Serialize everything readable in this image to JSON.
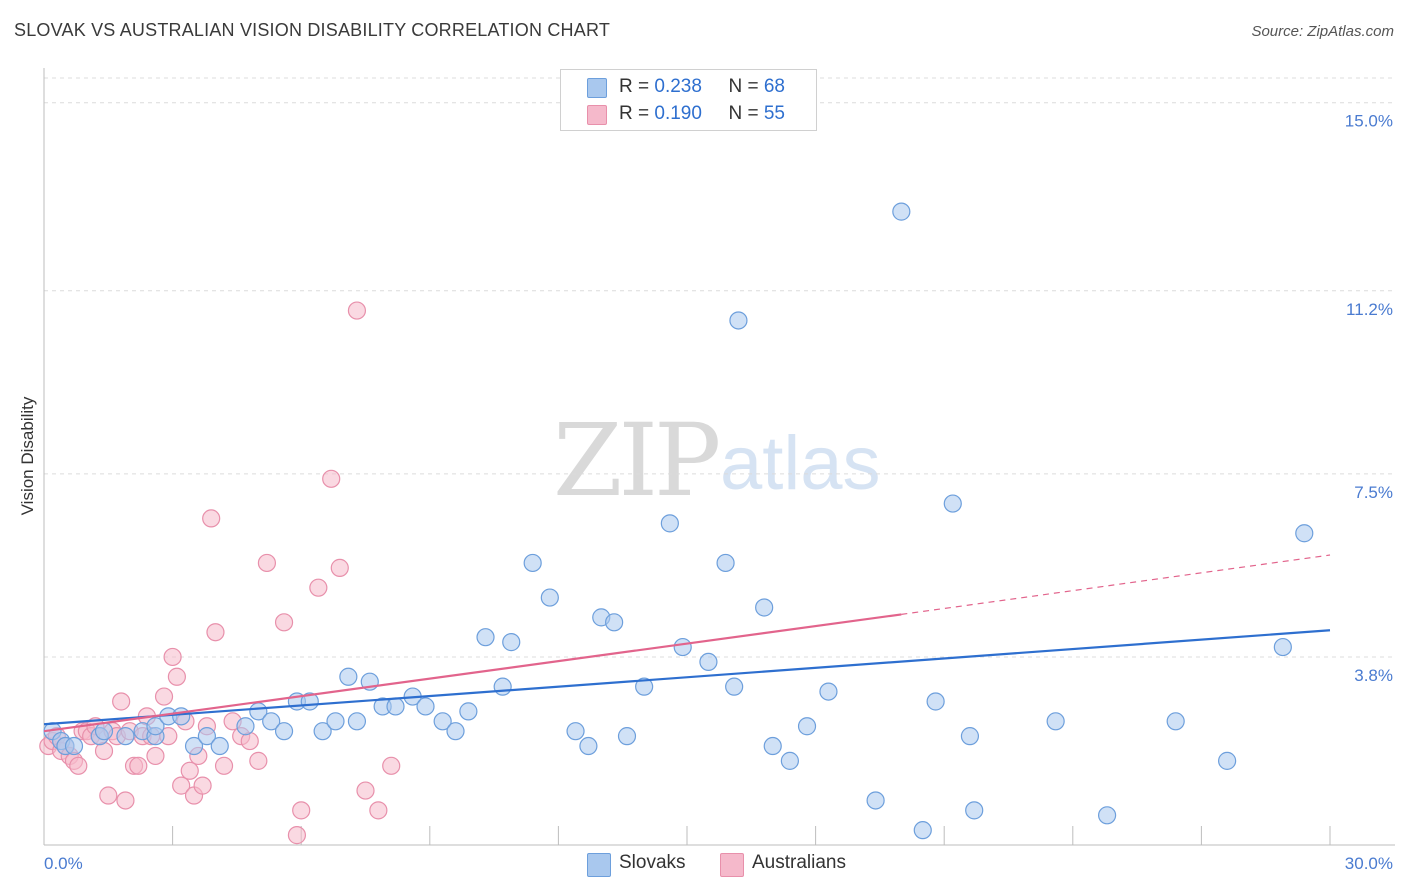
{
  "header": {
    "title": "SLOVAK VS AUSTRALIAN VISION DISABILITY CORRELATION CHART",
    "source": "Source: ZipAtlas.com"
  },
  "watermark": {
    "zip": "ZIP",
    "atlas": "atlas"
  },
  "legend": {
    "rows": [
      {
        "r_label": "R = ",
        "r_value": "0.238",
        "n_label": "N = ",
        "n_value": "68",
        "color": "#a9c8ee"
      },
      {
        "r_label": "R = ",
        "r_value": "0.190",
        "n_label": "N = ",
        "n_value": "55",
        "color": "#f5b9cb"
      }
    ]
  },
  "bottom_legend": [
    {
      "label": "Slovaks",
      "color": "#a9c8ee"
    },
    {
      "label": "Australians",
      "color": "#f5b9cb"
    }
  ],
  "chart_data": {
    "type": "scatter",
    "title": "SLOVAK VS AUSTRALIAN VISION DISABILITY CORRELATION CHART",
    "xlabel": "",
    "ylabel": "Vision Disability",
    "xlim": [
      0,
      30
    ],
    "ylim": [
      0,
      15.5
    ],
    "x_tick_labels": [
      "0.0%",
      "30.0%"
    ],
    "y_ticks": [
      3.8,
      7.5,
      11.2,
      15.0
    ],
    "y_tick_labels": [
      "3.8%",
      "7.5%",
      "11.2%",
      "15.0%"
    ],
    "grid": true,
    "legend_position": "top-center",
    "colors": {
      "slovaks_fill": "#a9c8ee",
      "slovaks_stroke": "#6d9fdc",
      "slovaks_line": "#2e6fcf",
      "australians_fill": "#f5b9cb",
      "australians_stroke": "#e890ab",
      "australians_line": "#e2648c"
    },
    "series": [
      {
        "name": "Slovaks",
        "points": [
          [
            0.2,
            2.3
          ],
          [
            0.4,
            2.1
          ],
          [
            0.5,
            2.0
          ],
          [
            0.7,
            2.0
          ],
          [
            1.3,
            2.2
          ],
          [
            1.4,
            2.3
          ],
          [
            1.9,
            2.2
          ],
          [
            2.3,
            2.3
          ],
          [
            2.6,
            2.2
          ],
          [
            2.6,
            2.4
          ],
          [
            2.9,
            2.6
          ],
          [
            3.2,
            2.6
          ],
          [
            3.5,
            2.0
          ],
          [
            3.8,
            2.2
          ],
          [
            4.1,
            2.0
          ],
          [
            4.7,
            2.4
          ],
          [
            5.0,
            2.7
          ],
          [
            5.3,
            2.5
          ],
          [
            5.6,
            2.3
          ],
          [
            5.9,
            2.9
          ],
          [
            6.2,
            2.9
          ],
          [
            6.5,
            2.3
          ],
          [
            6.8,
            2.5
          ],
          [
            7.1,
            3.4
          ],
          [
            7.3,
            2.5
          ],
          [
            7.6,
            3.3
          ],
          [
            7.9,
            2.8
          ],
          [
            8.2,
            2.8
          ],
          [
            8.6,
            3.0
          ],
          [
            8.9,
            2.8
          ],
          [
            9.3,
            2.5
          ],
          [
            9.6,
            2.3
          ],
          [
            9.9,
            2.7
          ],
          [
            10.3,
            4.2
          ],
          [
            10.7,
            3.2
          ],
          [
            10.9,
            4.1
          ],
          [
            11.4,
            5.7
          ],
          [
            11.8,
            5.0
          ],
          [
            12.4,
            2.3
          ],
          [
            12.7,
            2.0
          ],
          [
            13.0,
            4.6
          ],
          [
            13.3,
            4.5
          ],
          [
            13.6,
            2.2
          ],
          [
            14.0,
            3.2
          ],
          [
            14.6,
            6.5
          ],
          [
            14.9,
            4.0
          ],
          [
            15.5,
            3.7
          ],
          [
            15.9,
            5.7
          ],
          [
            16.2,
            10.6
          ],
          [
            16.1,
            3.2
          ],
          [
            16.8,
            4.8
          ],
          [
            17.0,
            2.0
          ],
          [
            17.4,
            1.7
          ],
          [
            17.8,
            2.4
          ],
          [
            18.3,
            3.1
          ],
          [
            19.4,
            0.9
          ],
          [
            20.0,
            12.8
          ],
          [
            20.5,
            0.3
          ],
          [
            20.8,
            2.9
          ],
          [
            21.2,
            6.9
          ],
          [
            21.6,
            2.2
          ],
          [
            21.7,
            0.7
          ],
          [
            23.6,
            2.5
          ],
          [
            24.8,
            0.6
          ],
          [
            26.4,
            2.5
          ],
          [
            27.6,
            1.7
          ],
          [
            28.9,
            4.0
          ],
          [
            29.4,
            6.3
          ]
        ]
      },
      {
        "name": "Australians",
        "points": [
          [
            0.1,
            2.0
          ],
          [
            0.2,
            2.1
          ],
          [
            0.3,
            2.2
          ],
          [
            0.4,
            1.9
          ],
          [
            0.5,
            2.0
          ],
          [
            0.6,
            1.8
          ],
          [
            0.7,
            1.7
          ],
          [
            0.8,
            1.6
          ],
          [
            0.9,
            2.3
          ],
          [
            1.0,
            2.3
          ],
          [
            1.1,
            2.2
          ],
          [
            1.2,
            2.4
          ],
          [
            1.3,
            2.2
          ],
          [
            1.4,
            1.9
          ],
          [
            1.5,
            1.0
          ],
          [
            1.6,
            2.3
          ],
          [
            1.7,
            2.2
          ],
          [
            1.8,
            2.9
          ],
          [
            1.9,
            0.9
          ],
          [
            2.0,
            2.3
          ],
          [
            2.1,
            1.6
          ],
          [
            2.2,
            1.6
          ],
          [
            2.3,
            2.2
          ],
          [
            2.4,
            2.6
          ],
          [
            2.5,
            2.2
          ],
          [
            2.6,
            1.8
          ],
          [
            2.8,
            3.0
          ],
          [
            2.9,
            2.2
          ],
          [
            3.0,
            3.8
          ],
          [
            3.1,
            3.4
          ],
          [
            3.2,
            1.2
          ],
          [
            3.3,
            2.5
          ],
          [
            3.4,
            1.5
          ],
          [
            3.5,
            1.0
          ],
          [
            3.6,
            1.8
          ],
          [
            3.7,
            1.2
          ],
          [
            3.8,
            2.4
          ],
          [
            3.9,
            6.6
          ],
          [
            4.0,
            4.3
          ],
          [
            4.2,
            1.6
          ],
          [
            4.4,
            2.5
          ],
          [
            4.6,
            2.2
          ],
          [
            4.8,
            2.1
          ],
          [
            5.0,
            1.7
          ],
          [
            5.2,
            5.7
          ],
          [
            5.6,
            4.5
          ],
          [
            5.9,
            0.2
          ],
          [
            6.0,
            0.7
          ],
          [
            6.4,
            5.2
          ],
          [
            6.7,
            7.4
          ],
          [
            6.9,
            5.6
          ],
          [
            7.3,
            10.8
          ],
          [
            7.5,
            1.1
          ],
          [
            7.8,
            0.7
          ],
          [
            8.1,
            1.6
          ]
        ]
      }
    ],
    "trend_lines": [
      {
        "name": "Slovaks",
        "x": [
          0,
          30
        ],
        "y": [
          2.44,
          4.34
        ]
      },
      {
        "name": "Australians",
        "x": [
          0,
          20
        ],
        "y": [
          2.3,
          4.66
        ],
        "dashed_extension_to": [
          30,
          5.86
        ]
      }
    ]
  }
}
